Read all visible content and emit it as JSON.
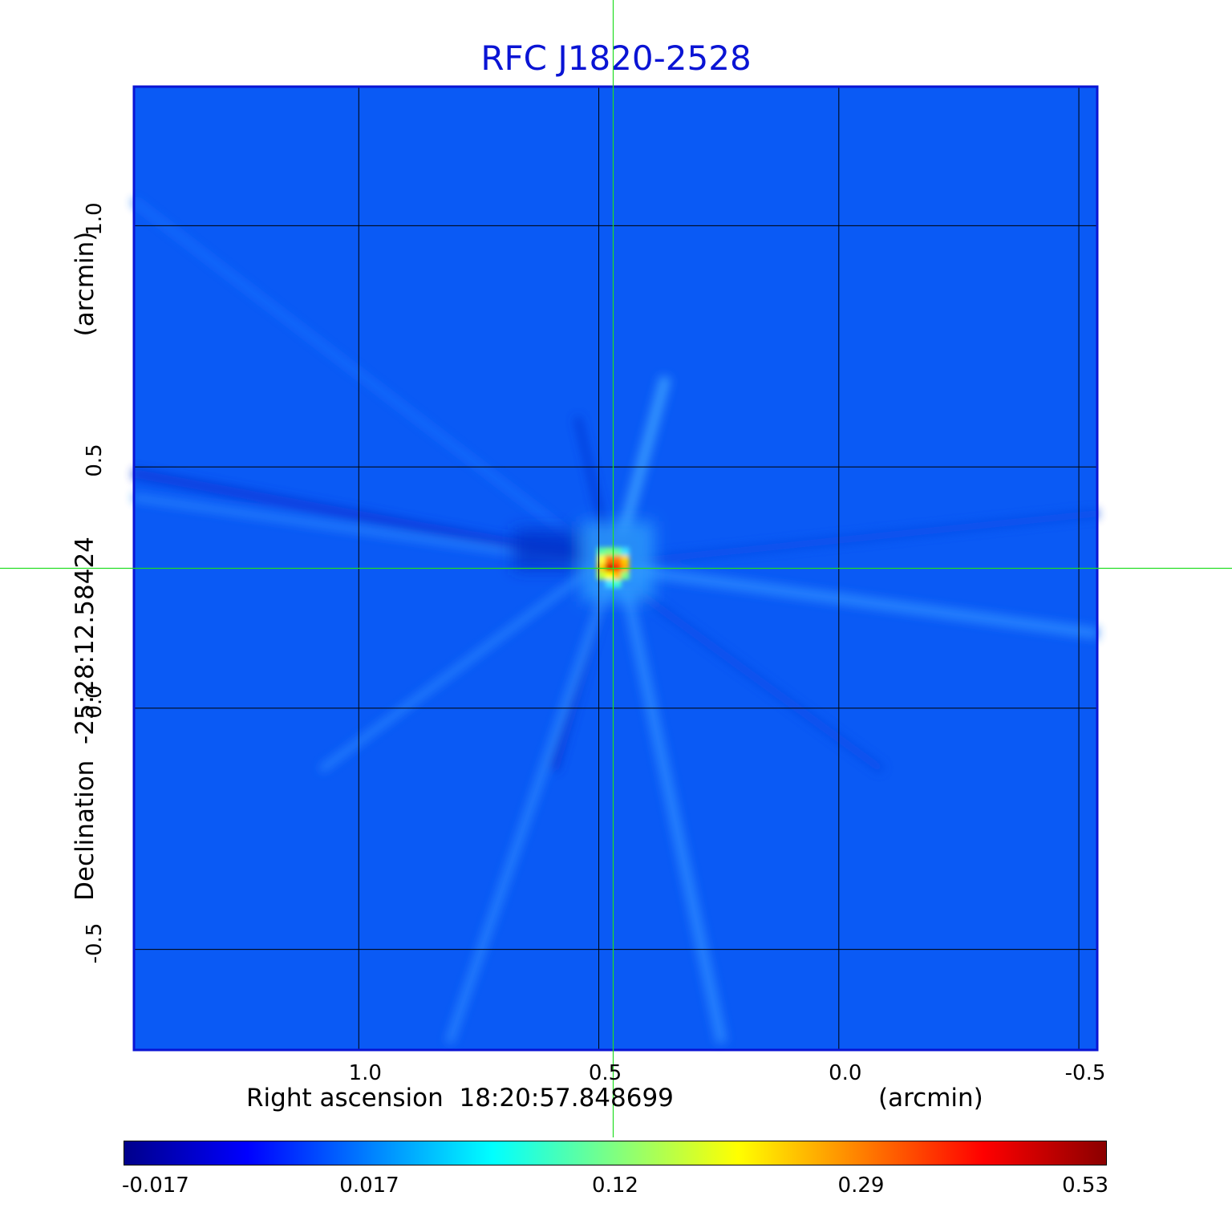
{
  "chart_data": {
    "type": "heatmap",
    "title": "RFC J1820-2528",
    "title_color": "#0a14d4",
    "xlabel": "Right ascension  18:20:57.848699",
    "x_unit_label": "(arcmin)",
    "ylabel": "Declination  -25:28:12.58424",
    "y_unit_label": "(arcmin)",
    "x_ticks": [
      "1.0",
      "0.5",
      "0.0",
      "-0.5"
    ],
    "x_tick_values": [
      1.0,
      0.5,
      0.0,
      -0.5
    ],
    "y_ticks": [
      "1.0",
      "0.5",
      "0.0",
      "-0.5"
    ],
    "y_tick_values": [
      1.0,
      0.5,
      0.0,
      -0.5
    ],
    "xlim": [
      1.47,
      -0.54
    ],
    "ylim": [
      -0.71,
      1.29
    ],
    "x_reversed": true,
    "grid": true,
    "crosshair": {
      "x": 0.47,
      "y": 0.29,
      "color": "#22dd22"
    },
    "source_peak": {
      "x": 0.47,
      "y": 0.3,
      "value": 0.53
    },
    "background_level": 0.0,
    "colorbar": {
      "ticks": [
        "-0.017",
        "0.017",
        "0.12",
        "0.29",
        "0.53"
      ],
      "tick_values": [
        -0.017,
        0.017,
        0.12,
        0.29,
        0.53
      ],
      "colormap": "jet",
      "colors": [
        "#00008b",
        "#0000ff",
        "#0080ff",
        "#00ffff",
        "#80ff80",
        "#ffff00",
        "#ff8000",
        "#ff0000",
        "#8b0000"
      ]
    },
    "background_color": "#0a5af5"
  }
}
